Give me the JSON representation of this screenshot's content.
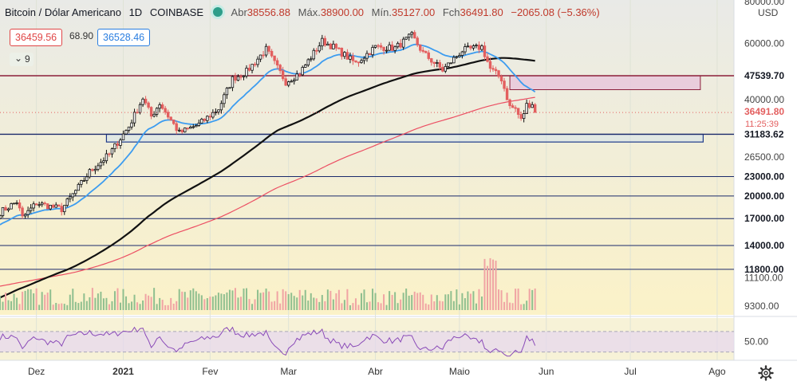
{
  "header": {
    "symbol": "Bitcoin / Dólar Americano",
    "interval": "1D",
    "exchange": "COINBASE",
    "open_label": "Abr",
    "open": "38556.88",
    "high_label": "Máx.",
    "high": "38900.00",
    "low_label": "Mín.",
    "low": "35127.00",
    "close_label": "Fch",
    "close": "36491.80",
    "change": "−2065.08 (−5.36%)"
  },
  "trade": {
    "sell": "36459.56",
    "spread": "68.90",
    "buy": "36528.46"
  },
  "indicators_toggle": {
    "chevron": "⌄",
    "count": "9"
  },
  "icons": {
    "settings": "gear-icon",
    "status": "live-dot-icon"
  },
  "colors": {
    "plot_bg_top": "#e9eae7",
    "plot_bg_bottom": "#fbf2c8",
    "candle_up": "#0d0d0d",
    "candle_down": "#e35f5f",
    "ema_short": "#3c9cf0",
    "ma_long": "#111111",
    "ma_200": "#ec4f63",
    "hline": "#1b2a6b",
    "resistance_line": "#8c1f3a",
    "support_zone_stroke": "#1e3a8a",
    "resistance_zone_fill": "#e7c8dc",
    "rsi": "#8a4bb8",
    "rsi_band": "#e6d7f0"
  },
  "chart_data": {
    "type": "candlestick",
    "ylog": true,
    "ylim": [
      8500,
      82000
    ],
    "x_range": [
      "2020-11-18",
      "2021-08-07"
    ],
    "y_unit": "USD",
    "y_ticks": [
      "80000.00",
      "60000.00",
      "40000.00",
      "26500.00",
      "9300.00"
    ],
    "y_tick_values": [
      80000,
      60000,
      40000,
      26500,
      9300
    ],
    "x_ticks": [
      {
        "label": "Dez",
        "date": "2020-12-01"
      },
      {
        "label": "2021",
        "date": "2021-01-01"
      },
      {
        "label": "Fev",
        "date": "2021-02-01"
      },
      {
        "label": "Mar",
        "date": "2021-03-01"
      },
      {
        "label": "Abr",
        "date": "2021-04-01"
      },
      {
        "label": "Maio",
        "date": "2021-05-01"
      },
      {
        "label": "Jun",
        "date": "2021-06-01"
      },
      {
        "label": "Jul",
        "date": "2021-07-01"
      },
      {
        "label": "Ago",
        "date": "2021-08-01"
      }
    ],
    "horizontal_levels": [
      {
        "price": 47539.7,
        "label": "47539.70",
        "style": "resistance"
      },
      {
        "price": 31183.62,
        "label": "31183.62",
        "style": "support"
      },
      {
        "price": 23000.0,
        "label": "23000.00",
        "style": "level"
      },
      {
        "price": 20000.0,
        "label": "20000.00",
        "style": "level"
      },
      {
        "price": 17000.0,
        "label": "17000.00",
        "style": "level"
      },
      {
        "price": 14000.0,
        "label": "14000.00",
        "style": "level"
      },
      {
        "price": 11800.0,
        "label": "11800.00",
        "style": "level"
      }
    ],
    "volume_axis_tick": "11100.00",
    "zones": [
      {
        "name": "resistance-zone",
        "start": "2021-05-19",
        "end": "2021-07-26",
        "top": 47539.7,
        "bottom": 43000
      },
      {
        "name": "support-zone",
        "start": "2020-12-26",
        "end": "2021-07-27",
        "top": 31183.62,
        "bottom": 29500
      }
    ],
    "last_price": {
      "value": 36491.8,
      "label": "36491.80",
      "countdown": "11:25:39"
    },
    "price_path": [
      [
        "2020-11-18",
        17800
      ],
      [
        "2020-11-24",
        19200
      ],
      [
        "2020-11-26",
        17100
      ],
      [
        "2020-12-01",
        19000
      ],
      [
        "2020-12-10",
        18200
      ],
      [
        "2020-12-16",
        21300
      ],
      [
        "2020-12-20",
        23800
      ],
      [
        "2020-12-27",
        27000
      ],
      [
        "2021-01-03",
        33000
      ],
      [
        "2021-01-08",
        40500
      ],
      [
        "2021-01-11",
        35500
      ],
      [
        "2021-01-14",
        39000
      ],
      [
        "2021-01-21",
        31500
      ],
      [
        "2021-01-28",
        33500
      ],
      [
        "2021-02-04",
        37500
      ],
      [
        "2021-02-09",
        46500
      ],
      [
        "2021-02-14",
        49000
      ],
      [
        "2021-02-21",
        57500
      ],
      [
        "2021-02-28",
        45500
      ],
      [
        "2021-03-05",
        48500
      ],
      [
        "2021-03-13",
        61000
      ],
      [
        "2021-03-17",
        58500
      ],
      [
        "2021-03-25",
        52000
      ],
      [
        "2021-04-01",
        58500
      ],
      [
        "2021-04-08",
        58000
      ],
      [
        "2021-04-14",
        63500
      ],
      [
        "2021-04-18",
        56000
      ],
      [
        "2021-04-25",
        49500
      ],
      [
        "2021-05-02",
        57000
      ],
      [
        "2021-05-09",
        58500
      ],
      [
        "2021-05-12",
        50000
      ],
      [
        "2021-05-16",
        46500
      ],
      [
        "2021-05-19",
        38000
      ],
      [
        "2021-05-21",
        37500
      ],
      [
        "2021-05-23",
        34500
      ],
      [
        "2021-05-25",
        38500
      ],
      [
        "2021-05-27",
        39000
      ],
      [
        "2021-05-28",
        36491.8
      ]
    ],
    "rsi": {
      "ticks": [
        "50.00"
      ],
      "band": [
        30,
        70
      ]
    }
  }
}
